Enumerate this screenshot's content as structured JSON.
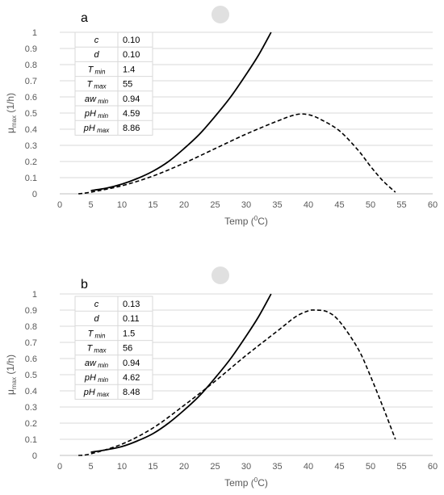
{
  "chart_data": [
    {
      "type": "line",
      "panel_label": "a",
      "xlabel": "Temp (",
      "xlabel_sup": "0",
      "xlabel_end": "C)",
      "ylabel_main": "μ",
      "ylabel_sub": "max",
      "ylabel_end": " (1/h)",
      "xlim": [
        0,
        60
      ],
      "ylim": [
        0,
        1
      ],
      "x_ticks": [
        "0",
        "5",
        "10",
        "15",
        "20",
        "25",
        "30",
        "35",
        "40",
        "45",
        "50",
        "55",
        "60"
      ],
      "y_ticks": [
        "0",
        "0.1",
        "0.2",
        "0.3",
        "0.4",
        "0.5",
        "0.6",
        "0.7",
        "0.8",
        "0.9",
        "1"
      ],
      "grid": "horizontal",
      "params": [
        {
          "name": "c",
          "sub": "",
          "value": "0.10"
        },
        {
          "name": "d",
          "sub": "",
          "value": "0.10"
        },
        {
          "name": "T",
          "sub": "min",
          "value": "1.4"
        },
        {
          "name": "T",
          "sub": "max",
          "value": "55"
        },
        {
          "name": "aw",
          "sub": "min",
          "value": "0.94"
        },
        {
          "name": "pH",
          "sub": "min",
          "value": "4.59"
        },
        {
          "name": "pH",
          "sub": "max",
          "value": "8.86"
        }
      ],
      "series": [
        {
          "style": "solid",
          "x": [
            5,
            7.5,
            10,
            12.5,
            15,
            17.5,
            20,
            22.5,
            25,
            27.5,
            30,
            32,
            34
          ],
          "y": [
            0.02,
            0.035,
            0.06,
            0.095,
            0.14,
            0.2,
            0.28,
            0.37,
            0.48,
            0.6,
            0.74,
            0.86,
            1.0
          ]
        },
        {
          "style": "dashed",
          "x": [
            3,
            5,
            10,
            15,
            20,
            25,
            30,
            35,
            38,
            40,
            42,
            45,
            48,
            50,
            52,
            54
          ],
          "y": [
            0,
            0.01,
            0.05,
            0.11,
            0.19,
            0.28,
            0.37,
            0.45,
            0.49,
            0.49,
            0.46,
            0.39,
            0.27,
            0.17,
            0.08,
            0.01
          ]
        }
      ]
    },
    {
      "type": "line",
      "panel_label": "b",
      "xlabel": "Temp (",
      "xlabel_sup": "0",
      "xlabel_end": "C)",
      "ylabel_main": "μ",
      "ylabel_sub": "max",
      "ylabel_end": " (1/h)",
      "xlim": [
        0,
        60
      ],
      "ylim": [
        0,
        1
      ],
      "x_ticks": [
        "0",
        "5",
        "10",
        "15",
        "20",
        "25",
        "30",
        "35",
        "40",
        "45",
        "50",
        "55",
        "60"
      ],
      "y_ticks": [
        "0",
        "0.1",
        "0.2",
        "0.3",
        "0.4",
        "0.5",
        "0.6",
        "0.7",
        "0.8",
        "0.9",
        "1"
      ],
      "grid": "horizontal",
      "params": [
        {
          "name": "c",
          "sub": "",
          "value": "0.13"
        },
        {
          "name": "d",
          "sub": "",
          "value": "0.11"
        },
        {
          "name": "T",
          "sub": "min",
          "value": "1.5"
        },
        {
          "name": "T",
          "sub": "max",
          "value": "56"
        },
        {
          "name": "aw",
          "sub": "min",
          "value": "0.94"
        },
        {
          "name": "pH",
          "sub": "min",
          "value": "4.62"
        },
        {
          "name": "pH",
          "sub": "max",
          "value": "8.48"
        }
      ],
      "series": [
        {
          "style": "solid",
          "x": [
            5,
            7.5,
            10,
            12.5,
            15,
            17.5,
            20,
            22.5,
            25,
            27.5,
            30,
            32,
            34
          ],
          "y": [
            0.02,
            0.035,
            0.055,
            0.09,
            0.135,
            0.2,
            0.28,
            0.37,
            0.48,
            0.6,
            0.74,
            0.86,
            1.0
          ]
        },
        {
          "style": "dashed",
          "x": [
            3,
            5,
            10,
            15,
            20,
            25,
            30,
            35,
            38,
            40,
            41,
            43,
            45,
            48,
            50,
            52,
            54
          ],
          "y": [
            0,
            0.01,
            0.07,
            0.17,
            0.31,
            0.46,
            0.62,
            0.77,
            0.86,
            0.895,
            0.9,
            0.89,
            0.83,
            0.66,
            0.49,
            0.3,
            0.1
          ]
        }
      ]
    }
  ]
}
